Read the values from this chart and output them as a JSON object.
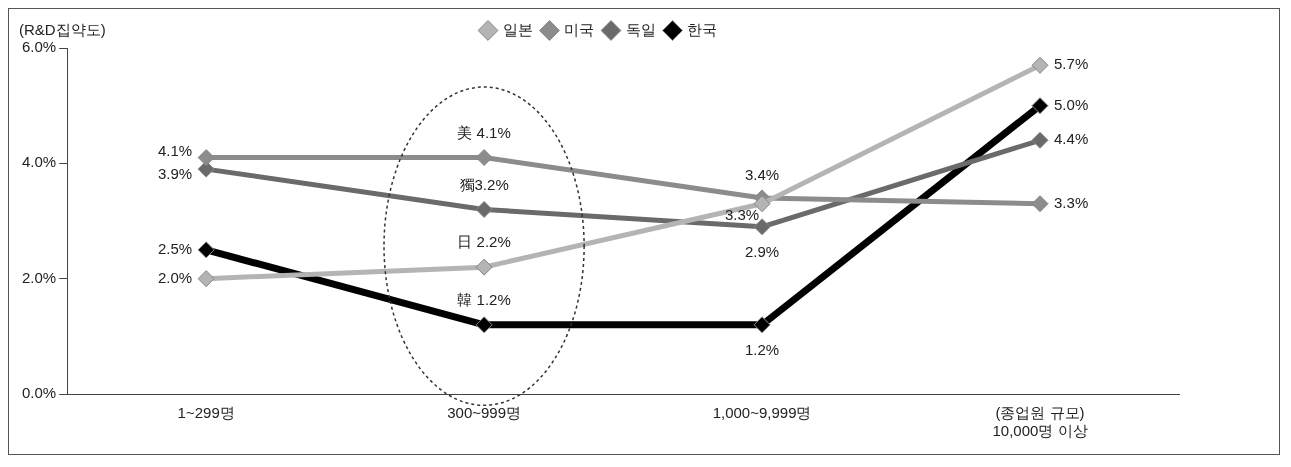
{
  "chart_data": {
    "type": "line",
    "ylabel": "(R&D집약도)",
    "xlabel": "(종업원 규모)",
    "categories": [
      "1~299명",
      "300~999명",
      "1,000~9,999명",
      "10,000명 이상"
    ],
    "series": [
      {
        "name": "일본",
        "color": "#b4b4b4",
        "values": [
          2.0,
          2.2,
          3.3,
          5.7
        ],
        "value_labels": [
          "2.0%",
          "日 2.2%",
          "3.3%",
          "5.7%"
        ]
      },
      {
        "name": "미국",
        "color": "#8c8c8c",
        "values": [
          4.1,
          4.1,
          3.4,
          3.3
        ],
        "value_labels": [
          "4.1%",
          "美 4.1%",
          "3.4%",
          "3.3%"
        ]
      },
      {
        "name": "독일",
        "color": "#6a6a6a",
        "values": [
          3.9,
          3.2,
          2.9,
          4.4
        ],
        "value_labels": [
          "3.9%",
          "獨3.2%",
          "2.9%",
          "4.4%"
        ]
      },
      {
        "name": "한국",
        "color": "#000000",
        "values": [
          2.5,
          1.2,
          1.2,
          5.0
        ],
        "value_labels": [
          "2.5%",
          "韓 1.2%",
          "1.2%",
          "5.0%"
        ]
      }
    ],
    "ylim": [
      0,
      6
    ],
    "yticks": [
      {
        "value": 0,
        "label": "0.0%"
      },
      {
        "value": 2,
        "label": "2.0%"
      },
      {
        "value": 4,
        "label": "4.0%"
      },
      {
        "value": 6,
        "label": "6.0%"
      }
    ],
    "grid": false,
    "legend": "top",
    "marker": "diamond",
    "line_style": "solid"
  }
}
